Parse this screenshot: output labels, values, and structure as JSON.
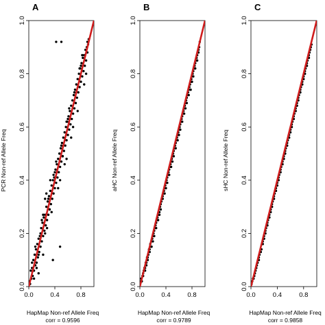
{
  "figure": {
    "panels": [
      {
        "label": "A",
        "ylabel": "PCR Non-ref Allele Freq",
        "xlabel": "HapMap Non-ref Allele Freq",
        "corr_text": "corr = 0.9596"
      },
      {
        "label": "B",
        "ylabel": "aHC Non-ref Allele Freq",
        "xlabel": "HapMap Non-ref Allele Freq",
        "corr_text": "corr = 0.9789"
      },
      {
        "label": "C",
        "ylabel": "sHC Non-ref Allele Freq",
        "xlabel": "HapMap Non-ref Allele Freq",
        "corr_text": "corr = 0.9858"
      }
    ]
  },
  "chart_data": [
    {
      "type": "scatter",
      "title": "A",
      "xlabel": "HapMap Non-ref Allele Freq",
      "ylabel": "PCR Non-ref Allele Freq",
      "annotation": "corr = 0.9596",
      "xlim": [
        0,
        1.0
      ],
      "ylim": [
        0,
        1.0
      ],
      "xticks": [
        "0.0",
        "0.4",
        "0.8"
      ],
      "yticks": [
        "0.0",
        "0.2",
        "0.4",
        "0.6",
        "0.8",
        "1.0"
      ],
      "reference_line": {
        "x": [
          0,
          1.0
        ],
        "y": [
          0,
          1.0
        ],
        "color": "#d01c1c"
      },
      "point_color": "#000000",
      "x": [
        0.01,
        0.02,
        0.03,
        0.04,
        0.05,
        0.06,
        0.07,
        0.08,
        0.09,
        0.1,
        0.11,
        0.12,
        0.13,
        0.14,
        0.15,
        0.16,
        0.17,
        0.18,
        0.19,
        0.2,
        0.21,
        0.22,
        0.23,
        0.24,
        0.25,
        0.26,
        0.27,
        0.28,
        0.29,
        0.3,
        0.31,
        0.32,
        0.33,
        0.34,
        0.35,
        0.36,
        0.37,
        0.38,
        0.39,
        0.4,
        0.41,
        0.42,
        0.43,
        0.44,
        0.45,
        0.46,
        0.47,
        0.48,
        0.49,
        0.5,
        0.51,
        0.52,
        0.53,
        0.54,
        0.55,
        0.56,
        0.57,
        0.58,
        0.59,
        0.6,
        0.61,
        0.62,
        0.63,
        0.64,
        0.65,
        0.66,
        0.67,
        0.68,
        0.69,
        0.7,
        0.71,
        0.72,
        0.73,
        0.74,
        0.75,
        0.76,
        0.77,
        0.78,
        0.79,
        0.8,
        0.81,
        0.82,
        0.83,
        0.84,
        0.85,
        0.86,
        0.87,
        0.88,
        0.89,
        0.9,
        0.91,
        0.92,
        0.05,
        0.1,
        0.15,
        0.2,
        0.25,
        0.3,
        0.35,
        0.4,
        0.45,
        0.5,
        0.55,
        0.6,
        0.65,
        0.7,
        0.75,
        0.8,
        0.85,
        0.9,
        0.08,
        0.18,
        0.28,
        0.38,
        0.48,
        0.58,
        0.68,
        0.78,
        0.88,
        0.12,
        0.22,
        0.32,
        0.42,
        0.52,
        0.62,
        0.72,
        0.82,
        0.42,
        0.5,
        0.37,
        0.25,
        0.15,
        0.48,
        0.33,
        0.22,
        0.58,
        0.27
      ],
      "y": [
        0.02,
        0.01,
        0.06,
        0.03,
        0.07,
        0.04,
        0.1,
        0.06,
        0.12,
        0.08,
        0.14,
        0.09,
        0.16,
        0.11,
        0.18,
        0.13,
        0.19,
        0.15,
        0.22,
        0.17,
        0.24,
        0.19,
        0.26,
        0.21,
        0.27,
        0.23,
        0.3,
        0.25,
        0.32,
        0.27,
        0.34,
        0.29,
        0.36,
        0.31,
        0.38,
        0.33,
        0.4,
        0.35,
        0.41,
        0.37,
        0.44,
        0.39,
        0.46,
        0.41,
        0.48,
        0.43,
        0.5,
        0.45,
        0.52,
        0.47,
        0.54,
        0.49,
        0.56,
        0.51,
        0.58,
        0.53,
        0.6,
        0.55,
        0.62,
        0.57,
        0.64,
        0.59,
        0.66,
        0.61,
        0.68,
        0.63,
        0.7,
        0.65,
        0.72,
        0.67,
        0.74,
        0.69,
        0.76,
        0.71,
        0.78,
        0.73,
        0.8,
        0.75,
        0.82,
        0.77,
        0.84,
        0.79,
        0.86,
        0.81,
        0.87,
        0.83,
        0.89,
        0.85,
        0.9,
        0.88,
        0.91,
        0.93,
        0.09,
        0.15,
        0.12,
        0.25,
        0.2,
        0.33,
        0.28,
        0.43,
        0.37,
        0.53,
        0.46,
        0.63,
        0.56,
        0.73,
        0.66,
        0.83,
        0.76,
        0.92,
        0.03,
        0.2,
        0.22,
        0.42,
        0.4,
        0.62,
        0.6,
        0.82,
        0.8,
        0.07,
        0.27,
        0.29,
        0.47,
        0.49,
        0.67,
        0.69,
        0.87,
        0.92,
        0.92,
        0.1,
        0.33,
        0.05,
        0.15,
        0.4,
        0.12,
        0.48,
        0.35
      ]
    },
    {
      "type": "scatter",
      "title": "B",
      "xlabel": "HapMap Non-ref Allele Freq",
      "ylabel": "aHC Non-ref Allele Freq",
      "annotation": "corr = 0.9789",
      "xlim": [
        0,
        1.0
      ],
      "ylim": [
        0,
        1.0
      ],
      "xticks": [
        "0.0",
        "0.4",
        "0.8"
      ],
      "yticks": [
        "0.0",
        "0.2",
        "0.4",
        "0.6",
        "0.8",
        "1.0"
      ],
      "reference_line": {
        "x": [
          0,
          1.0
        ],
        "y": [
          0,
          1.0
        ],
        "color": "#d01c1c"
      },
      "point_color": "#000000",
      "x": [
        0.01,
        0.02,
        0.03,
        0.04,
        0.05,
        0.06,
        0.07,
        0.08,
        0.09,
        0.1,
        0.11,
        0.12,
        0.13,
        0.14,
        0.15,
        0.16,
        0.17,
        0.18,
        0.19,
        0.2,
        0.21,
        0.22,
        0.23,
        0.24,
        0.25,
        0.26,
        0.27,
        0.28,
        0.29,
        0.3,
        0.31,
        0.32,
        0.33,
        0.34,
        0.35,
        0.36,
        0.37,
        0.38,
        0.39,
        0.4,
        0.41,
        0.42,
        0.43,
        0.44,
        0.45,
        0.46,
        0.47,
        0.48,
        0.49,
        0.5,
        0.51,
        0.52,
        0.53,
        0.54,
        0.55,
        0.56,
        0.57,
        0.58,
        0.59,
        0.6,
        0.61,
        0.62,
        0.63,
        0.64,
        0.65,
        0.66,
        0.67,
        0.68,
        0.69,
        0.7,
        0.71,
        0.72,
        0.73,
        0.74,
        0.75,
        0.76,
        0.77,
        0.78,
        0.79,
        0.8,
        0.81,
        0.82,
        0.83,
        0.84,
        0.85,
        0.86,
        0.87,
        0.88,
        0.89,
        0.9,
        0.91,
        0.92,
        0.05,
        0.1,
        0.15,
        0.2,
        0.25,
        0.3,
        0.35,
        0.4,
        0.45,
        0.5,
        0.55,
        0.6,
        0.65,
        0.7,
        0.75,
        0.8,
        0.85,
        0.9,
        0.08,
        0.18,
        0.28,
        0.38,
        0.48,
        0.58,
        0.68,
        0.78,
        0.88,
        0.12,
        0.22,
        0.32,
        0.42,
        0.52,
        0.62,
        0.72,
        0.82
      ],
      "y": [
        0.02,
        0.03,
        0.02,
        0.04,
        0.05,
        0.06,
        0.07,
        0.07,
        0.09,
        0.09,
        0.11,
        0.11,
        0.12,
        0.14,
        0.14,
        0.16,
        0.15,
        0.17,
        0.18,
        0.19,
        0.2,
        0.21,
        0.22,
        0.23,
        0.24,
        0.25,
        0.26,
        0.27,
        0.28,
        0.28,
        0.3,
        0.31,
        0.32,
        0.33,
        0.34,
        0.35,
        0.36,
        0.37,
        0.38,
        0.39,
        0.4,
        0.41,
        0.42,
        0.43,
        0.44,
        0.45,
        0.46,
        0.47,
        0.48,
        0.49,
        0.5,
        0.51,
        0.52,
        0.53,
        0.54,
        0.55,
        0.56,
        0.57,
        0.58,
        0.59,
        0.6,
        0.61,
        0.62,
        0.63,
        0.64,
        0.65,
        0.66,
        0.67,
        0.68,
        0.69,
        0.7,
        0.71,
        0.72,
        0.73,
        0.74,
        0.75,
        0.76,
        0.77,
        0.78,
        0.79,
        0.8,
        0.81,
        0.82,
        0.83,
        0.84,
        0.85,
        0.86,
        0.87,
        0.88,
        0.89,
        0.9,
        0.92,
        0.04,
        0.08,
        0.13,
        0.17,
        0.22,
        0.27,
        0.33,
        0.37,
        0.42,
        0.47,
        0.52,
        0.57,
        0.62,
        0.67,
        0.72,
        0.77,
        0.82,
        0.88,
        0.06,
        0.15,
        0.25,
        0.35,
        0.45,
        0.55,
        0.65,
        0.74,
        0.85,
        0.1,
        0.19,
        0.29,
        0.39,
        0.49,
        0.59,
        0.69,
        0.79
      ]
    },
    {
      "type": "scatter",
      "title": "C",
      "xlabel": "HapMap Non-ref Allele Freq",
      "ylabel": "sHC Non-ref Allele Freq",
      "annotation": "corr = 0.9858",
      "xlim": [
        0,
        1.0
      ],
      "ylim": [
        0,
        1.0
      ],
      "xticks": [
        "0.0",
        "0.4",
        "0.8"
      ],
      "yticks": [
        "0.0",
        "0.2",
        "0.4",
        "0.6",
        "0.8",
        "1.0"
      ],
      "reference_line": {
        "x": [
          0,
          1.0
        ],
        "y": [
          0,
          1.0
        ],
        "color": "#d01c1c"
      },
      "point_color": "#000000",
      "x": [
        0.01,
        0.02,
        0.03,
        0.04,
        0.05,
        0.06,
        0.07,
        0.08,
        0.09,
        0.1,
        0.11,
        0.12,
        0.13,
        0.14,
        0.15,
        0.16,
        0.17,
        0.18,
        0.19,
        0.2,
        0.21,
        0.22,
        0.23,
        0.24,
        0.25,
        0.26,
        0.27,
        0.28,
        0.29,
        0.3,
        0.31,
        0.32,
        0.33,
        0.34,
        0.35,
        0.36,
        0.37,
        0.38,
        0.39,
        0.4,
        0.41,
        0.42,
        0.43,
        0.44,
        0.45,
        0.46,
        0.47,
        0.48,
        0.49,
        0.5,
        0.51,
        0.52,
        0.53,
        0.54,
        0.55,
        0.56,
        0.57,
        0.58,
        0.59,
        0.6,
        0.61,
        0.62,
        0.63,
        0.64,
        0.65,
        0.66,
        0.67,
        0.68,
        0.69,
        0.7,
        0.71,
        0.72,
        0.73,
        0.74,
        0.75,
        0.76,
        0.77,
        0.78,
        0.79,
        0.8,
        0.81,
        0.82,
        0.83,
        0.84,
        0.85,
        0.86,
        0.87,
        0.88,
        0.89,
        0.9,
        0.91,
        0.92,
        0.05,
        0.1,
        0.15,
        0.2,
        0.25,
        0.3,
        0.35,
        0.4,
        0.45,
        0.5,
        0.55,
        0.6,
        0.65,
        0.7,
        0.75,
        0.8,
        0.85,
        0.9,
        0.08,
        0.18,
        0.28,
        0.38,
        0.48,
        0.58,
        0.68,
        0.78,
        0.88,
        0.12,
        0.22,
        0.32,
        0.42,
        0.52,
        0.62,
        0.72,
        0.82
      ],
      "y": [
        0.01,
        0.02,
        0.03,
        0.03,
        0.04,
        0.05,
        0.06,
        0.07,
        0.08,
        0.09,
        0.1,
        0.11,
        0.12,
        0.13,
        0.14,
        0.14,
        0.16,
        0.17,
        0.18,
        0.19,
        0.2,
        0.21,
        0.22,
        0.23,
        0.24,
        0.25,
        0.26,
        0.27,
        0.28,
        0.29,
        0.3,
        0.31,
        0.32,
        0.33,
        0.34,
        0.35,
        0.36,
        0.37,
        0.38,
        0.39,
        0.4,
        0.41,
        0.42,
        0.43,
        0.44,
        0.45,
        0.46,
        0.47,
        0.48,
        0.49,
        0.5,
        0.51,
        0.52,
        0.53,
        0.54,
        0.55,
        0.56,
        0.57,
        0.58,
        0.59,
        0.6,
        0.61,
        0.62,
        0.63,
        0.64,
        0.65,
        0.66,
        0.67,
        0.68,
        0.69,
        0.7,
        0.71,
        0.72,
        0.73,
        0.74,
        0.75,
        0.76,
        0.77,
        0.78,
        0.79,
        0.8,
        0.81,
        0.82,
        0.83,
        0.84,
        0.85,
        0.86,
        0.87,
        0.88,
        0.89,
        0.9,
        0.91,
        0.04,
        0.09,
        0.13,
        0.18,
        0.23,
        0.28,
        0.33,
        0.38,
        0.43,
        0.48,
        0.53,
        0.58,
        0.63,
        0.68,
        0.73,
        0.78,
        0.83,
        0.89,
        0.07,
        0.16,
        0.26,
        0.36,
        0.46,
        0.56,
        0.66,
        0.76,
        0.86,
        0.1,
        0.2,
        0.3,
        0.4,
        0.5,
        0.6,
        0.7,
        0.8
      ]
    }
  ]
}
